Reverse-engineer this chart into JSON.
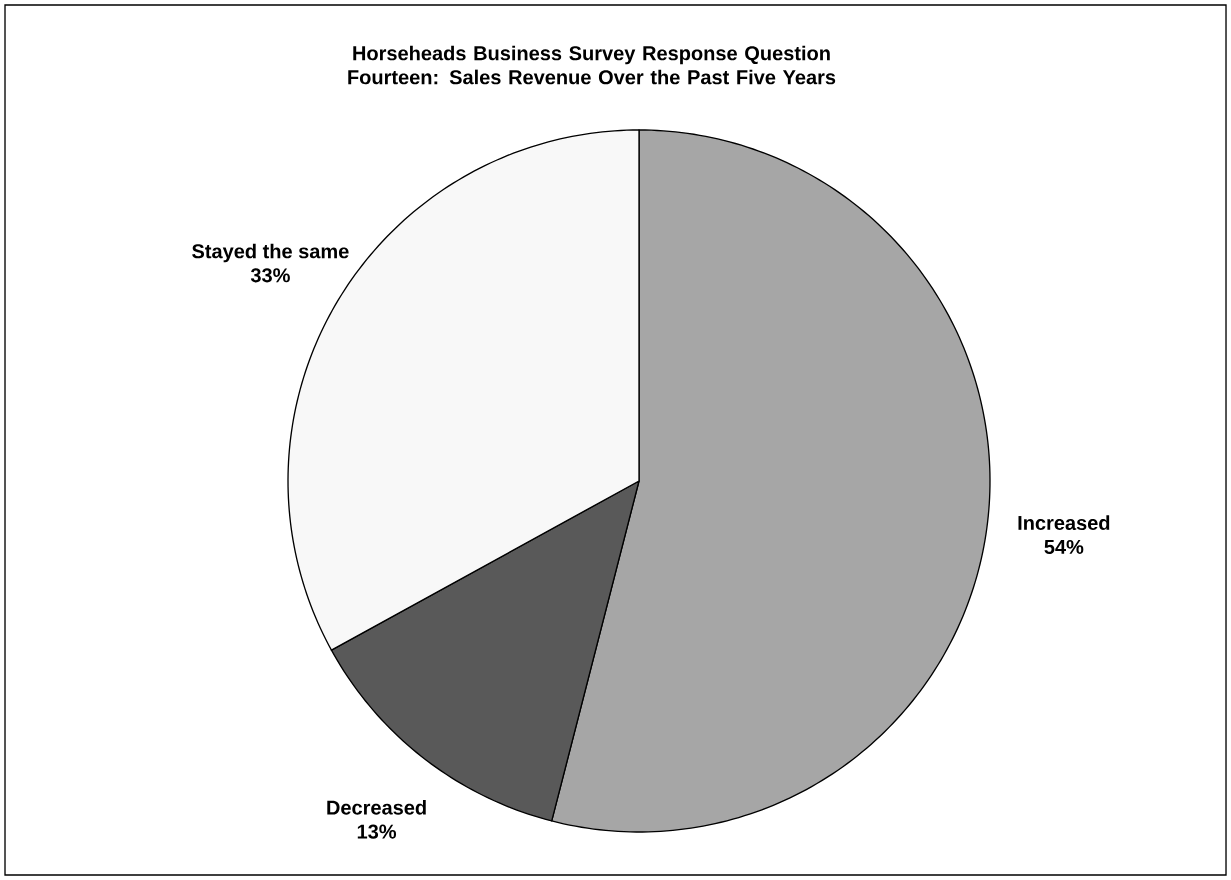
{
  "chart_data": {
    "type": "pie",
    "title": "Horseheads Business Survey Response Question Fourteen: Sales Revenue Over the Past Five Years",
    "categories": [
      "Increased",
      "Decreased",
      "Stayed the same"
    ],
    "values": [
      54,
      13,
      33
    ],
    "value_labels": [
      "54%",
      "13%",
      "33%"
    ],
    "colors": [
      "#a6a6a6",
      "#595959",
      "#f8f8f8"
    ]
  }
}
